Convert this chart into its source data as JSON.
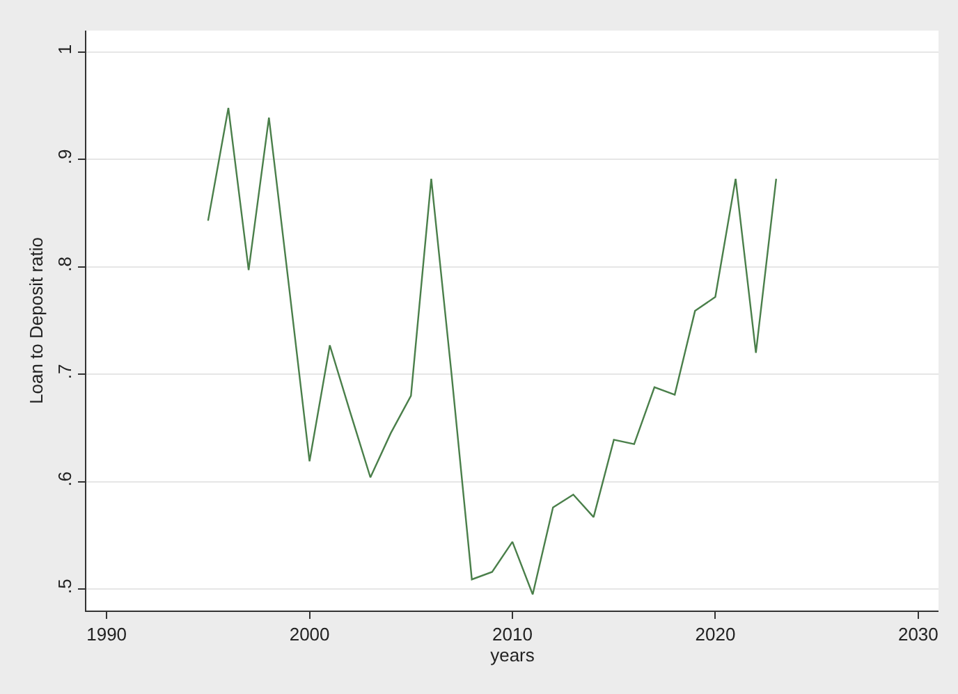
{
  "chart_data": {
    "type": "line",
    "xlabel": "years",
    "ylabel": "Loan to Deposit ratio",
    "x": [
      1995,
      1996,
      1997,
      1998,
      1999,
      2000,
      2001,
      2002,
      2003,
      2004,
      2005,
      2006,
      2007,
      2008,
      2009,
      2010,
      2011,
      2012,
      2013,
      2014,
      2015,
      2016,
      2017,
      2018,
      2019,
      2020,
      2021,
      2022,
      2023
    ],
    "series": [
      {
        "color": "#4a7f4a",
        "values": [
          0.843,
          0.948,
          0.797,
          0.939,
          0.78,
          0.619,
          0.727,
          0.665,
          0.604,
          0.645,
          0.68,
          0.882,
          0.7,
          0.509,
          0.516,
          0.544,
          0.495,
          0.576,
          0.588,
          0.567,
          0.639,
          0.635,
          0.688,
          0.681,
          0.759,
          0.772,
          0.882,
          0.72,
          0.882
        ]
      }
    ],
    "xlim": [
      1989,
      2031
    ],
    "xticks": [
      1990,
      2000,
      2010,
      2020,
      2030
    ],
    "ylim": [
      0.48,
      1.02
    ],
    "yticks": [
      {
        "value": 0.5,
        "label": ".5"
      },
      {
        "value": 0.6,
        "label": ".6"
      },
      {
        "value": 0.7,
        "label": ".7"
      },
      {
        "value": 0.8,
        "label": ".8"
      },
      {
        "value": 0.9,
        "label": ".9"
      },
      {
        "value": 1,
        "label": "1"
      }
    ],
    "grid": "y",
    "legend": false,
    "marker": "none",
    "line_style": "solid"
  }
}
